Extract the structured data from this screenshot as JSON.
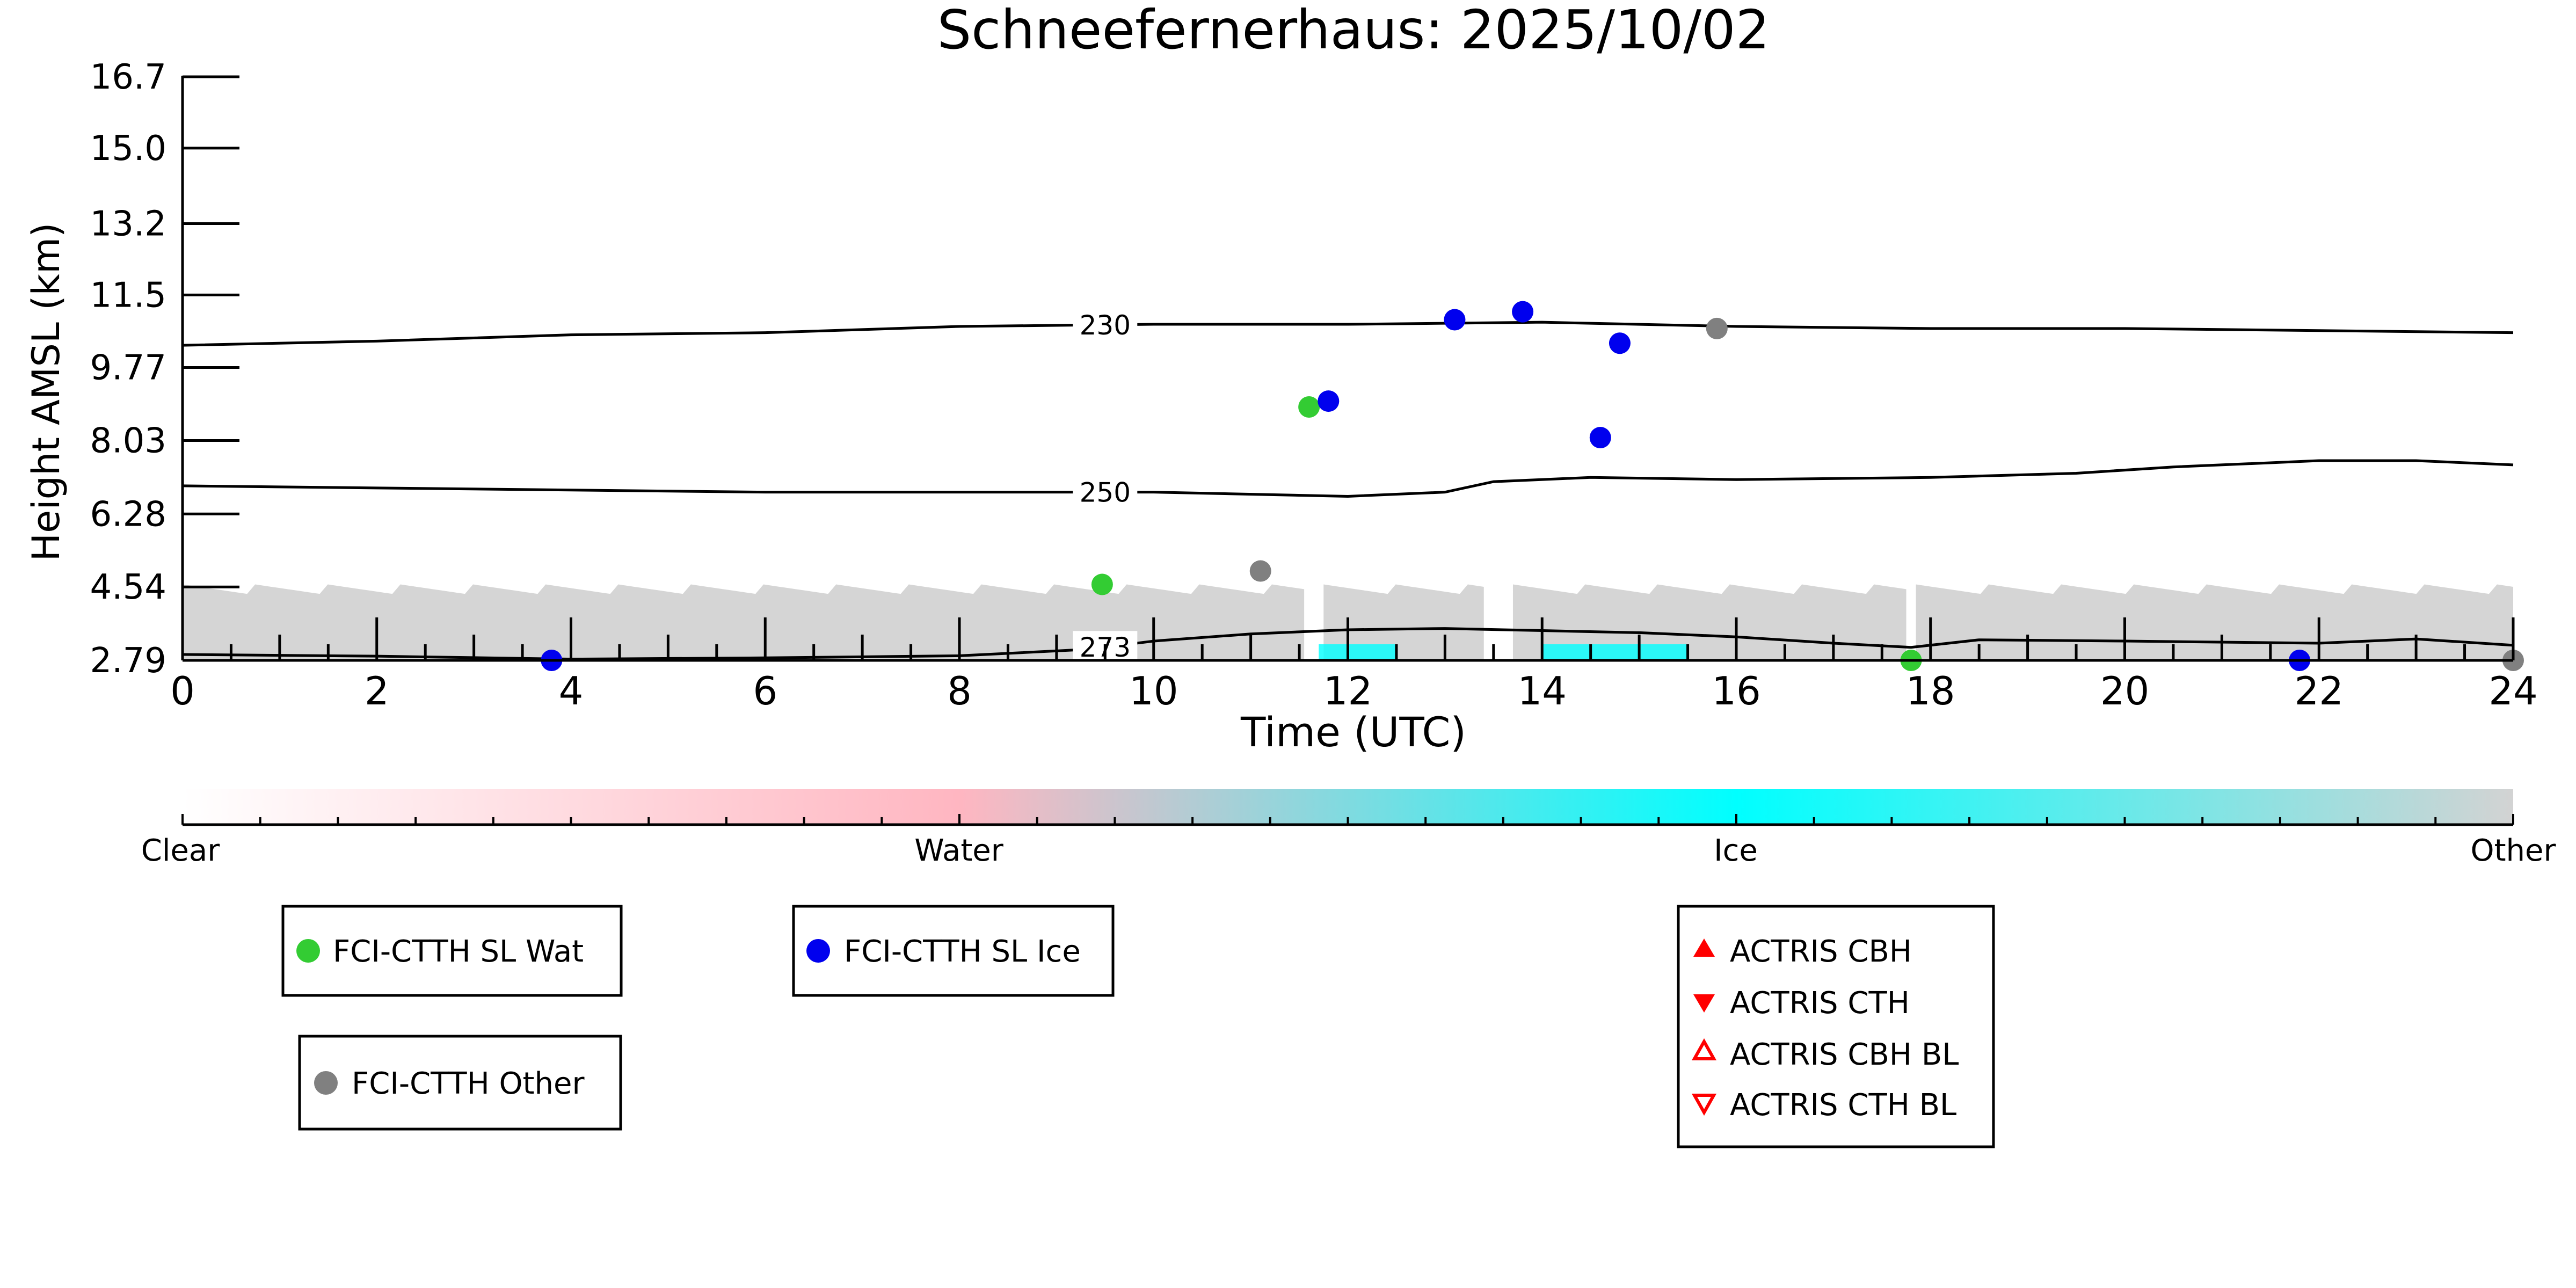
{
  "chart_data": {
    "type": "scatter",
    "title": "Schneefernerhaus: 2025/10/02",
    "xlabel": "Time (UTC)",
    "ylabel": "Height AMSL (km)",
    "xlim": [
      0,
      24
    ],
    "ylim": [
      2.79,
      16.7
    ],
    "x_ticks": [
      "0",
      "2",
      "4",
      "6",
      "8",
      "10",
      "12",
      "14",
      "16",
      "18",
      "20",
      "22",
      "24"
    ],
    "y_ticks": [
      "2.79",
      "4.54",
      "6.28",
      "8.03",
      "9.77",
      "11.5",
      "13.2",
      "15.0",
      "16.7"
    ],
    "series": [
      {
        "name": "FCI-CTTH SL Wat",
        "color": "#33cc33",
        "points": [
          [
            9.47,
            4.6
          ],
          [
            11.6,
            8.83
          ],
          [
            17.8,
            2.79
          ]
        ]
      },
      {
        "name": "FCI-CTTH SL Ice",
        "color": "#0000ee",
        "points": [
          [
            3.8,
            2.79
          ],
          [
            11.8,
            8.97
          ],
          [
            13.1,
            10.91
          ],
          [
            13.8,
            11.1
          ],
          [
            14.6,
            8.1
          ],
          [
            14.8,
            10.35
          ],
          [
            21.8,
            2.79
          ]
        ]
      },
      {
        "name": "FCI-CTTH Other",
        "color": "#808080",
        "points": [
          [
            11.1,
            4.92
          ],
          [
            15.8,
            10.7
          ],
          [
            24.0,
            2.79
          ]
        ]
      },
      {
        "name": "ACTRIS CBH",
        "color": "#ff0000",
        "marker": "triangle-up",
        "points": []
      },
      {
        "name": "ACTRIS CTH",
        "color": "#ff0000",
        "marker": "triangle-down",
        "points": []
      },
      {
        "name": "ACTRIS CBH BL",
        "color": "#ff0000",
        "marker": "triangle-up-open",
        "points": []
      },
      {
        "name": "ACTRIS CTH BL",
        "color": "#ff0000",
        "marker": "triangle-down-open",
        "points": []
      }
    ],
    "contours": [
      {
        "label": "230",
        "label_at": 9.5,
        "points": [
          [
            0,
            10.3
          ],
          [
            2,
            10.4
          ],
          [
            4,
            10.55
          ],
          [
            6,
            10.6
          ],
          [
            8,
            10.75
          ],
          [
            10,
            10.8
          ],
          [
            12,
            10.8
          ],
          [
            14,
            10.85
          ],
          [
            16,
            10.75
          ],
          [
            18,
            10.7
          ],
          [
            20,
            10.7
          ],
          [
            22,
            10.65
          ],
          [
            24,
            10.6
          ]
        ]
      },
      {
        "label": "250",
        "label_at": 9.5,
        "points": [
          [
            0,
            6.95
          ],
          [
            2,
            6.9
          ],
          [
            4,
            6.85
          ],
          [
            6,
            6.8
          ],
          [
            8,
            6.8
          ],
          [
            10,
            6.8
          ],
          [
            12,
            6.7
          ],
          [
            13,
            6.8
          ],
          [
            13.5,
            7.05
          ],
          [
            14.5,
            7.15
          ],
          [
            16,
            7.1
          ],
          [
            18,
            7.15
          ],
          [
            19.5,
            7.25
          ],
          [
            20.5,
            7.4
          ],
          [
            22,
            7.55
          ],
          [
            23,
            7.55
          ],
          [
            24,
            7.45
          ]
        ]
      },
      {
        "label": "273",
        "label_at": 9.5,
        "points": [
          [
            0,
            2.93
          ],
          [
            2,
            2.89
          ],
          [
            4,
            2.82
          ],
          [
            6,
            2.85
          ],
          [
            8,
            2.9
          ],
          [
            9.3,
            3.05
          ],
          [
            10,
            3.25
          ],
          [
            11,
            3.42
          ],
          [
            12,
            3.52
          ],
          [
            13,
            3.55
          ],
          [
            14,
            3.5
          ],
          [
            15,
            3.45
          ],
          [
            16,
            3.35
          ],
          [
            17,
            3.2
          ],
          [
            17.8,
            3.1
          ],
          [
            18.5,
            3.28
          ],
          [
            20,
            3.25
          ],
          [
            22,
            3.2
          ],
          [
            23,
            3.3
          ],
          [
            24,
            3.15
          ]
        ]
      }
    ],
    "cloud_mask": {
      "classes": [
        "Clear",
        "Water",
        "Ice",
        "Other"
      ],
      "colors": [
        "#ffffff",
        "#ffb6c1",
        "#00ffff",
        "#d3d3d3"
      ],
      "coverage_km_top": 4.6,
      "gaps_utc": [
        [
          11.55,
          11.75
        ],
        [
          13.4,
          13.7
        ],
        [
          17.75,
          17.85
        ]
      ],
      "ice_spans_utc": [
        [
          14.0,
          15.5
        ],
        [
          11.7,
          12.5
        ]
      ]
    },
    "colorbar": {
      "labels": [
        "Clear",
        "Water",
        "Ice",
        "Other"
      ]
    },
    "legend_entries": [
      "FCI-CTTH SL Wat",
      "FCI-CTTH SL Ice",
      "FCI-CTTH Other",
      "ACTRIS CBH",
      "ACTRIS CTH",
      "ACTRIS CBH BL",
      "ACTRIS CTH BL"
    ]
  }
}
